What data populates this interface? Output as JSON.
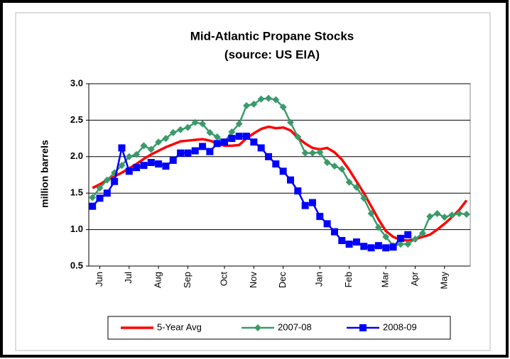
{
  "chart_data": {
    "type": "line",
    "title": "Mid-Atlantic Propane Stocks",
    "subtitle": "(source: US EIA)",
    "y_label": "million barrels",
    "categories": [
      null,
      "Jun",
      null,
      null,
      null,
      "Jul",
      null,
      null,
      null,
      "Aug",
      null,
      null,
      null,
      "Sep",
      null,
      null,
      null,
      null,
      "Oct",
      null,
      null,
      null,
      "Nov",
      null,
      null,
      null,
      "Dec",
      null,
      null,
      null,
      null,
      "Jan",
      null,
      null,
      null,
      "Feb",
      null,
      null,
      null,
      null,
      "Mar",
      null,
      null,
      null,
      "Apr",
      null,
      null,
      null,
      "May",
      null,
      null,
      null
    ],
    "ylim": [
      0.5,
      3.0
    ],
    "yticks": [
      0.5,
      {
        "value": 1.0,
        "label": "1.0"
      },
      1.5,
      {
        "value": 2.0,
        "label": "2.0"
      },
      2.5,
      {
        "value": 3.0,
        "label": "3.0"
      }
    ],
    "grid": true,
    "legend": "bottom",
    "series": [
      {
        "name": "5-Year Avg",
        "color": "#ff0000",
        "marker": "none",
        "values": [
          1.57,
          1.62,
          1.68,
          1.73,
          1.78,
          1.84,
          1.9,
          1.97,
          2.03,
          2.08,
          2.13,
          2.17,
          2.21,
          2.22,
          2.23,
          2.24,
          2.22,
          2.18,
          2.15,
          2.15,
          2.16,
          2.25,
          2.32,
          2.38,
          2.41,
          2.39,
          2.4,
          2.36,
          2.26,
          2.18,
          2.12,
          2.1,
          2.12,
          2.06,
          1.96,
          1.82,
          1.66,
          1.5,
          1.32,
          1.14,
          0.98,
          0.9,
          0.86,
          0.85,
          0.87,
          0.9,
          0.93,
          1.0,
          1.08,
          1.17,
          1.27,
          1.4
        ]
      },
      {
        "name": "2007-08",
        "color": "#3a9a6a",
        "marker": "diamond",
        "values": [
          1.44,
          1.57,
          1.68,
          1.78,
          1.88,
          2.0,
          2.03,
          2.15,
          2.1,
          2.2,
          2.25,
          2.33,
          2.37,
          2.4,
          2.47,
          2.45,
          2.33,
          2.27,
          2.2,
          2.34,
          2.45,
          2.7,
          2.72,
          2.79,
          2.8,
          2.78,
          2.68,
          2.47,
          2.27,
          2.05,
          2.05,
          2.06,
          1.92,
          1.87,
          1.83,
          1.65,
          1.58,
          1.43,
          1.22,
          1.03,
          0.9,
          0.78,
          0.8,
          0.8,
          0.87,
          0.95,
          1.18,
          1.22,
          1.17,
          1.2,
          1.22,
          1.21
        ]
      },
      {
        "name": "2008-09",
        "color": "#0000ff",
        "marker": "square",
        "values": [
          1.32,
          1.43,
          1.5,
          1.66,
          2.12,
          1.8,
          1.85,
          1.88,
          1.92,
          1.9,
          1.87,
          1.95,
          2.05,
          2.05,
          2.08,
          2.14,
          2.07,
          2.18,
          2.2,
          2.25,
          2.28,
          2.28,
          2.2,
          2.12,
          2.0,
          1.9,
          1.8,
          1.68,
          1.53,
          1.33,
          1.37,
          1.18,
          1.08,
          0.97,
          0.85,
          0.8,
          0.83,
          0.77,
          0.75,
          0.78,
          0.75,
          0.76,
          0.88,
          0.93,
          null,
          null,
          null,
          null,
          null,
          null,
          null,
          null
        ]
      }
    ]
  }
}
